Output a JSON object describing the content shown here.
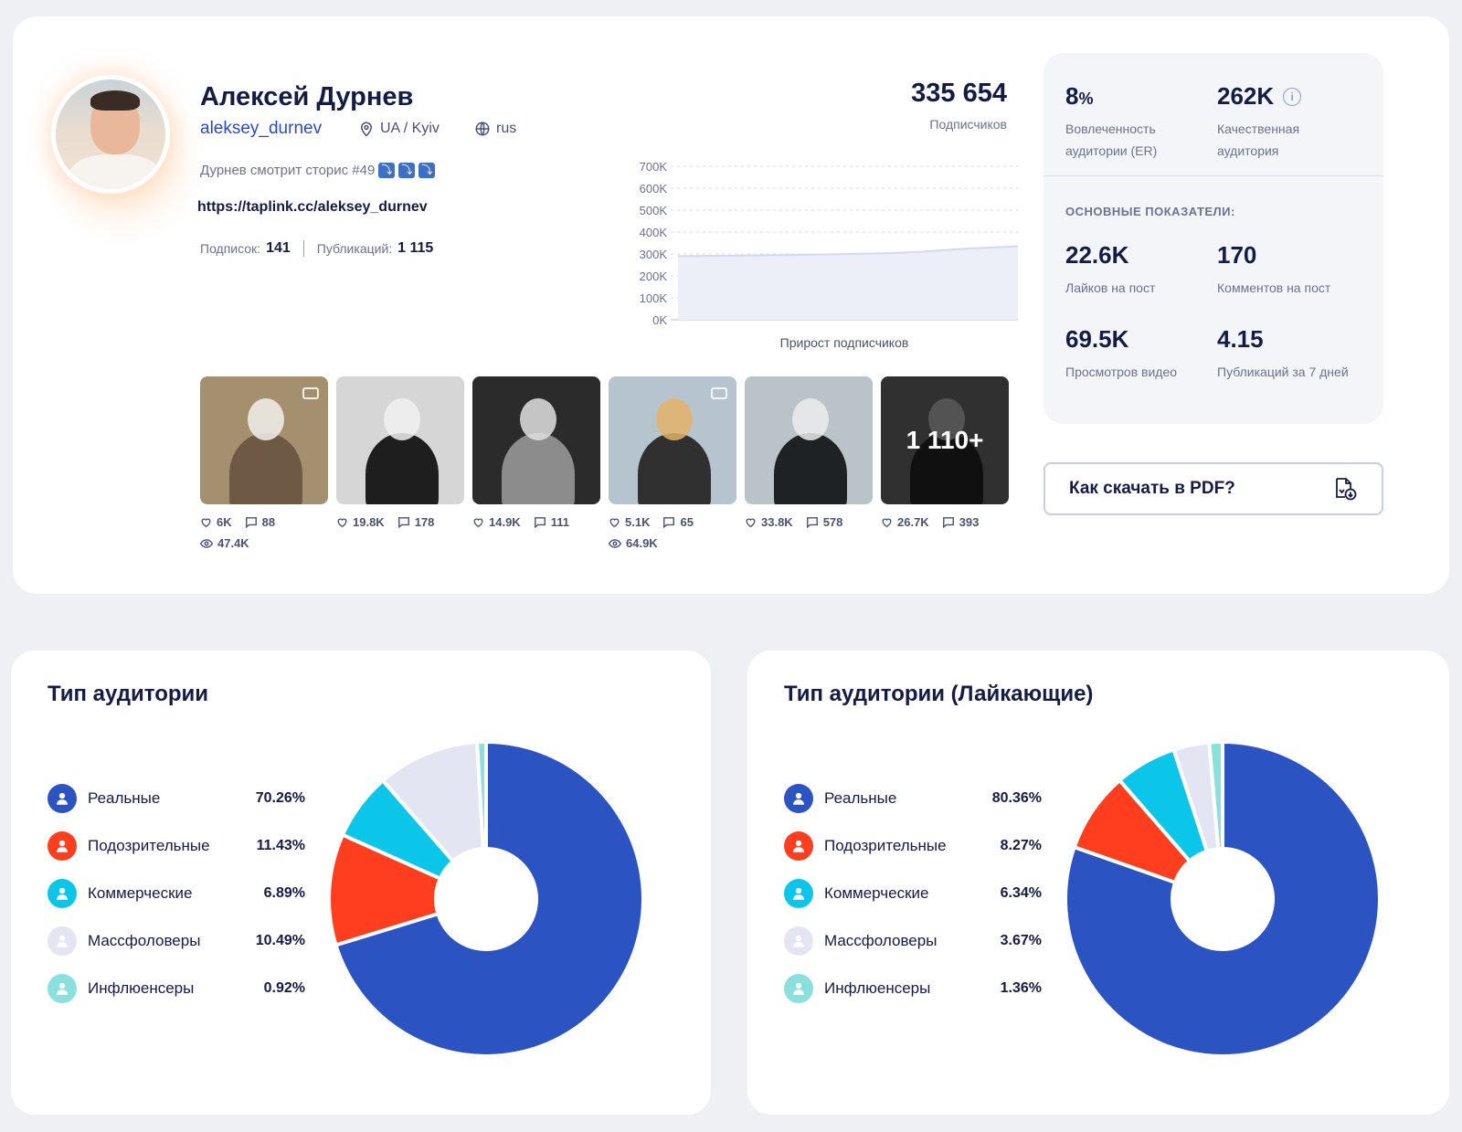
{
  "profile": {
    "name": "Алексей Дурнев",
    "username": "aleksey_durnev",
    "location": "UA / Kyiv",
    "language": "rus",
    "bio": "Дурнев смотрит сторис #49",
    "bio_emojis": [
      "⤵",
      "⤵",
      "⤵"
    ],
    "link": "https://taplink.cc/aleksey_durnev",
    "following_label": "Подписок:",
    "following": "141",
    "posts_label": "Публикаций:",
    "posts": "1 115"
  },
  "followers": {
    "value": "335 654",
    "label": "Подписчиков"
  },
  "chart_data": {
    "type": "area",
    "title": "",
    "xlabel": "Прирост подписчиков",
    "ylabel": "",
    "y_ticks": [
      "700K",
      "600K",
      "500K",
      "400K",
      "300K",
      "200K",
      "100K",
      "0K"
    ],
    "ylim": [
      0,
      700000
    ],
    "series": [
      {
        "values": [
          290000,
          291000,
          292000,
          293000,
          295000,
          296000,
          298000,
          300000,
          302000,
          305000,
          310000,
          318000,
          325000,
          330000,
          335654
        ]
      }
    ],
    "grid": true
  },
  "posts": [
    {
      "likes": "6K",
      "comments": "88",
      "views": "47.4K",
      "video": true,
      "colors": [
        "#a4906e",
        "#6e5a44",
        "#f2f0ec"
      ]
    },
    {
      "likes": "19.8K",
      "comments": "178",
      "views": "",
      "video": false,
      "colors": [
        "#d6d6d6",
        "#1e1e1e",
        "#f1f1f1"
      ]
    },
    {
      "likes": "14.9K",
      "comments": "111",
      "views": "",
      "video": false,
      "colors": [
        "#2b2b2b",
        "#8c8c8c",
        "#e0e0e0"
      ]
    },
    {
      "likes": "5.1K",
      "comments": "65",
      "views": "64.9K",
      "video": true,
      "colors": [
        "#b6c4cf",
        "#303030",
        "#e4b36a"
      ]
    },
    {
      "likes": "33.8K",
      "comments": "578",
      "views": "",
      "video": false,
      "colors": [
        "#b9c3c8",
        "#1f2225",
        "#ececec"
      ]
    },
    {
      "likes": "26.7K",
      "comments": "393",
      "views": "",
      "video": false,
      "colors": [
        "#4a4a4a",
        "#1a1a1a",
        "#8a8a8a"
      ],
      "more": "1 110+"
    }
  ],
  "metrics": {
    "er_value": "8",
    "er_unit": "%",
    "er_label": "Вовлеченность аудитории (ER)",
    "quality_value": "262K",
    "quality_label": "Качественная аудитория",
    "section_title": "ОСНОВНЫЕ ПОКАЗАТЕЛИ:",
    "likes_value": "22.6K",
    "likes_label": "Лайков на пост",
    "comments_value": "170",
    "comments_label": "Комментов на пост",
    "views_value": "69.5K",
    "views_label": "Просмотров видео",
    "pubs_value": "4.15",
    "pubs_label": "Публикаций за 7 дней"
  },
  "pdf_button": {
    "label": "Как скачать в PDF?"
  },
  "audience": {
    "title": "Тип аудитории",
    "items": [
      {
        "label": "Реальные",
        "value": "70.26%",
        "pct": 70.26,
        "color": "#2c53c2"
      },
      {
        "label": "Подозрительные",
        "value": "11.43%",
        "pct": 11.43,
        "color": "#ff3d1f"
      },
      {
        "label": "Коммерческие",
        "value": "6.89%",
        "pct": 6.89,
        "color": "#0cc6ea"
      },
      {
        "label": "Массфоловеры",
        "value": "10.49%",
        "pct": 10.49,
        "color": "#e3e5f2"
      },
      {
        "label": "Инфлюенсеры",
        "value": "0.92%",
        "pct": 0.92,
        "color": "#8ae0dc"
      }
    ]
  },
  "audience_likers": {
    "title": "Тип аудитории (Лайкающие)",
    "items": [
      {
        "label": "Реальные",
        "value": "80.36%",
        "pct": 80.36,
        "color": "#2c53c2"
      },
      {
        "label": "Подозрительные",
        "value": "8.27%",
        "pct": 8.27,
        "color": "#ff3d1f"
      },
      {
        "label": "Коммерческие",
        "value": "6.34%",
        "pct": 6.34,
        "color": "#0cc6ea"
      },
      {
        "label": "Массфоловеры",
        "value": "3.67%",
        "pct": 3.67,
        "color": "#e3e5f2"
      },
      {
        "label": "Инфлюенсеры",
        "value": "1.36%",
        "pct": 1.36,
        "color": "#8ae0dc"
      }
    ]
  }
}
